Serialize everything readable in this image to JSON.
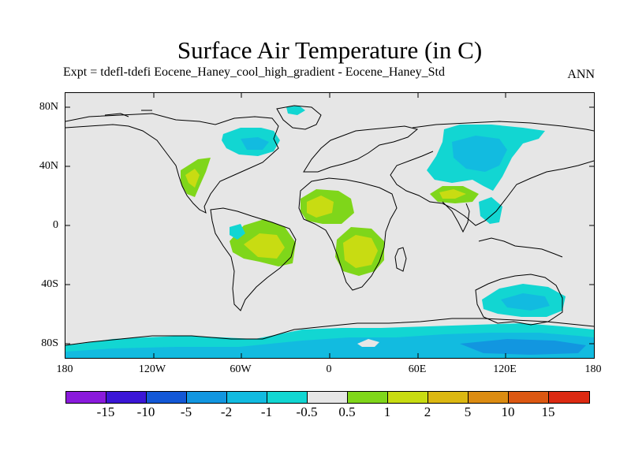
{
  "title": "Surface Air Temperature (in C)",
  "subtitle": "Expt = tdefl-tdefi  Eocene_Haney_cool_high_gradient - Eocene_Haney_Std",
  "season": "ANN",
  "lat_labels": [
    "80N",
    "40N",
    "0",
    "40S",
    "80S"
  ],
  "lon_labels": [
    "180",
    "120W",
    "60W",
    "0",
    "60E",
    "120E",
    "180"
  ],
  "colorbar": {
    "colors": [
      "#8a1adc",
      "#3b16d6",
      "#1358d6",
      "#1296e0",
      "#12bbe0",
      "#12d6d2",
      "#e6e6e6",
      "#7fd61a",
      "#c8dc12",
      "#dcb812",
      "#dc8c12",
      "#dc5812",
      "#dc2a12"
    ],
    "labels": [
      "-15",
      "-10",
      "-5",
      "-2",
      "-1",
      "-0.5",
      "0.5",
      "1",
      "2",
      "5",
      "10",
      "15"
    ]
  },
  "colors": {
    "background": "#e6e6e6",
    "cool_light": "#12d6d2",
    "cool_mid": "#12bbe0",
    "cool_deep": "#1296e0",
    "warm_light": "#7fd61a",
    "warm_mid": "#c8dc12"
  }
}
